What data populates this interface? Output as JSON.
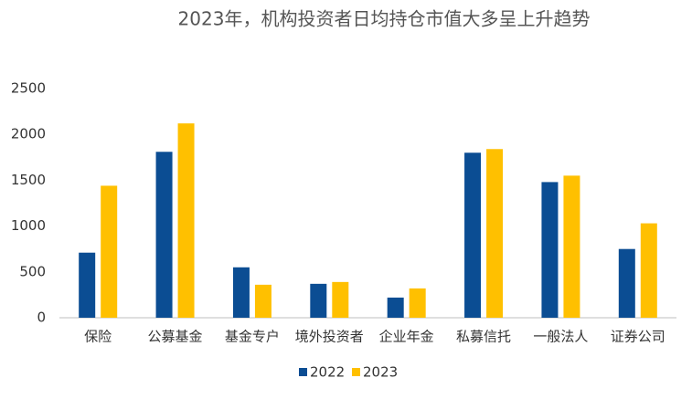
{
  "chart_data": {
    "type": "bar",
    "title": "2023年，机构投资者日均持仓市值大多呈上升趋势",
    "categories": [
      "保险",
      "公募基金",
      "基金专户",
      "境外投资者",
      "企业年金",
      "私募信托",
      "一般法人",
      "证券公司"
    ],
    "series": [
      {
        "name": "2022",
        "color": "#0b4d93",
        "values": [
          710,
          1810,
          550,
          370,
          220,
          1800,
          1480,
          750
        ]
      },
      {
        "name": "2023",
        "color": "#ffc000",
        "values": [
          1440,
          2120,
          360,
          390,
          320,
          1840,
          1550,
          1030
        ]
      }
    ],
    "ylim": [
      0,
      2500
    ],
    "yticks": [
      0,
      500,
      1000,
      1500,
      2000,
      2500
    ],
    "grid": false,
    "legend": "bottom"
  }
}
